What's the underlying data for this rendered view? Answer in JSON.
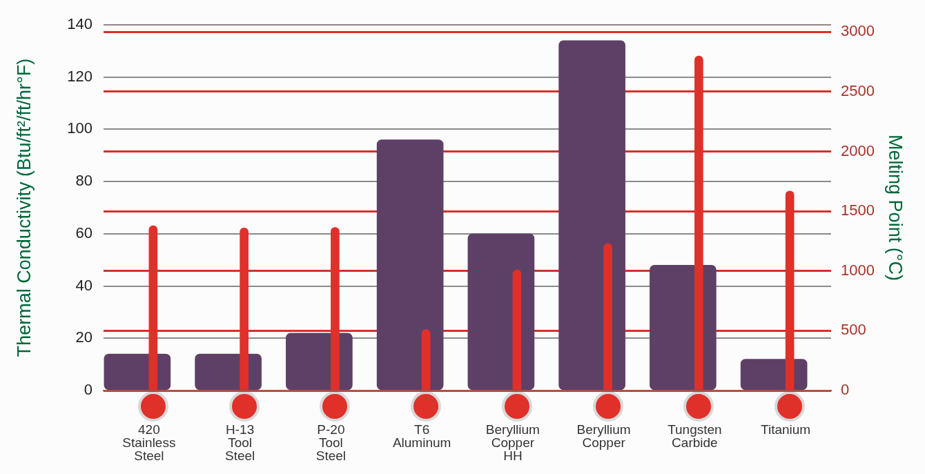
{
  "chart_data": {
    "type": "bar",
    "categories": [
      "420\nStainless\nSteel",
      "H-13\nTool\nSteel",
      "P-20\nTool\nSteel",
      "T6\nAluminum",
      "Beryllium\nCopper\nHH",
      "Beryllium\nCopper",
      "Tungsten\nCarbide",
      "Titanium"
    ],
    "ylabel": "Thermal Conductivity (Btu/ft²/ft/hr°F)",
    "y2label": "Melting Point (°C)",
    "ylim": [
      0,
      140
    ],
    "yticks": [
      0,
      20,
      40,
      60,
      80,
      100,
      120,
      140
    ],
    "y2lim": [
      0,
      3060
    ],
    "y2ticks": [
      0,
      500,
      1000,
      1500,
      2000,
      2500,
      3000
    ],
    "grid": true,
    "series": [
      {
        "color": "#5e4066",
        "values": [
          14,
          14,
          22,
          96,
          60,
          134,
          48,
          12
        ]
      },
      {
        "axis": "y2",
        "color": "#e0302a",
        "values": [
          1380,
          1360,
          1365,
          510,
          1010,
          1230,
          2800,
          1670
        ]
      }
    ]
  }
}
